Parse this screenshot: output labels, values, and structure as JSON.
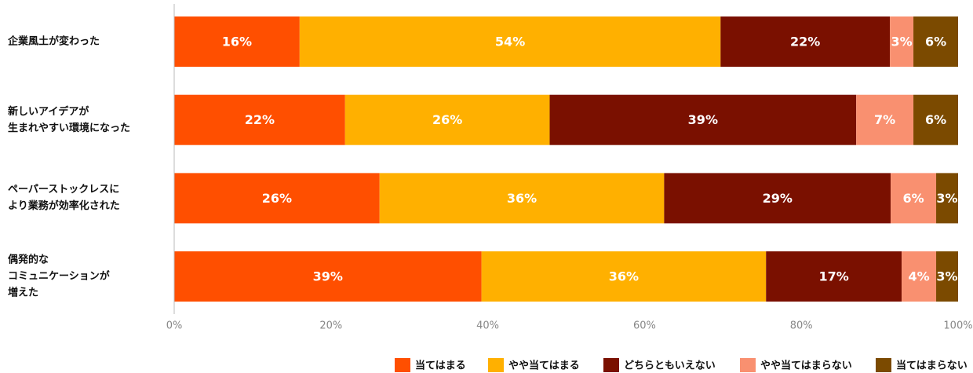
{
  "chart_data": {
    "type": "stacked-bar-horizontal",
    "categories": [
      "企業風土が変わった",
      "新しいアイデアが\n生まれやすい環境になった",
      "ペーパーストックレスに\nより業務が効率化された",
      "偶発的な\nコミュニケーションが\n増えた"
    ],
    "series": [
      {
        "name": "当てはまる",
        "color": "#ff4f00",
        "values": [
          16.0,
          21.8,
          26.2,
          39.2
        ],
        "value_labels": [
          "16%",
          "22%",
          "26%",
          "39%"
        ]
      },
      {
        "name": "やや当てはまる",
        "color": "#ffb000",
        "values": [
          53.7,
          26.1,
          36.3,
          36.3
        ],
        "value_labels": [
          "54%",
          "26%",
          "36%",
          "36%"
        ]
      },
      {
        "name": "どちらともいえない",
        "color": "#7a1000",
        "values": [
          21.6,
          39.1,
          28.9,
          17.3
        ],
        "value_labels": [
          "22%",
          "39%",
          "29%",
          "17%"
        ]
      },
      {
        "name": "やや当てはまらない",
        "color": "#f99070",
        "values": [
          3.0,
          7.3,
          5.8,
          4.4
        ],
        "value_labels": [
          "3%",
          "7%",
          "6%",
          "4%"
        ]
      },
      {
        "name": "当てはまらない",
        "color": "#7b4a00",
        "values": [
          5.7,
          5.7,
          2.8,
          2.8
        ],
        "value_labels": [
          "6%",
          "6%",
          "3%",
          "3%"
        ]
      }
    ],
    "xlim": [
      0,
      100
    ],
    "xticks": [
      {
        "value": 0,
        "label": "0%"
      },
      {
        "value": 20,
        "label": "20%"
      },
      {
        "value": 40,
        "label": "40%"
      },
      {
        "value": 60,
        "label": "60%"
      },
      {
        "value": 80,
        "label": "80%"
      },
      {
        "value": 100,
        "label": "100%"
      }
    ],
    "legend": "bottom-right"
  }
}
